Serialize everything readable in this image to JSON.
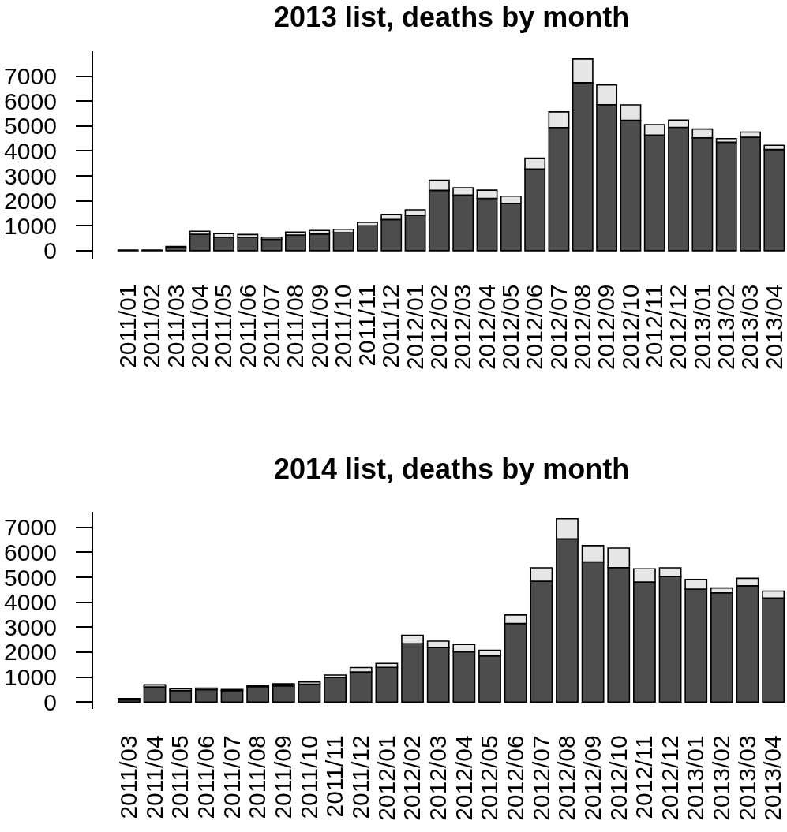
{
  "chart_data": [
    {
      "type": "bar",
      "title": "2013 list, deaths by month",
      "stacked": true,
      "categories": [
        "2011/01",
        "2011/02",
        "2011/03",
        "2011/04",
        "2011/05",
        "2011/06",
        "2011/07",
        "2011/08",
        "2011/09",
        "2011/10",
        "2011/11",
        "2011/12",
        "2012/01",
        "2012/02",
        "2012/03",
        "2012/04",
        "2012/05",
        "2012/06",
        "2012/07",
        "2012/08",
        "2012/09",
        "2012/10",
        "2012/11",
        "2012/12",
        "2013/01",
        "2013/02",
        "2013/03",
        "2013/04"
      ],
      "series": [
        {
          "color": "#4d4d4d",
          "values": [
            20,
            20,
            120,
            660,
            540,
            540,
            460,
            630,
            670,
            720,
            1000,
            1250,
            1420,
            2420,
            2230,
            2100,
            1900,
            3280,
            4940,
            6740,
            5860,
            5230,
            4640,
            4950,
            4530,
            4350,
            4550,
            4060
          ]
        },
        {
          "color": "#e6e6e6",
          "values": [
            0,
            0,
            50,
            120,
            150,
            110,
            80,
            120,
            140,
            140,
            140,
            210,
            220,
            410,
            300,
            330,
            290,
            430,
            630,
            950,
            790,
            620,
            420,
            290,
            350,
            150,
            210,
            170
          ]
        }
      ],
      "ylim": [
        -308,
        8000
      ],
      "yticks": [
        0,
        1000,
        2000,
        3000,
        4000,
        5000,
        6000,
        7000
      ]
    },
    {
      "type": "bar",
      "title": "2014 list, deaths by month",
      "stacked": true,
      "categories": [
        "2011/03",
        "2011/04",
        "2011/05",
        "2011/06",
        "2011/07",
        "2011/08",
        "2011/09",
        "2011/10",
        "2011/11",
        "2011/12",
        "2012/01",
        "2012/02",
        "2012/03",
        "2012/04",
        "2012/05",
        "2012/06",
        "2012/07",
        "2012/08",
        "2012/09",
        "2012/10",
        "2012/11",
        "2012/12",
        "2013/01",
        "2013/02",
        "2013/03",
        "2013/04"
      ],
      "series": [
        {
          "color": "#4d4d4d",
          "values": [
            90,
            610,
            460,
            500,
            460,
            620,
            650,
            720,
            980,
            1210,
            1390,
            2340,
            2180,
            2020,
            1850,
            3150,
            4840,
            6540,
            5620,
            5390,
            4810,
            5030,
            4530,
            4380,
            4660,
            4170
          ]
        },
        {
          "color": "#e6e6e6",
          "values": [
            50,
            80,
            80,
            60,
            40,
            50,
            80,
            90,
            100,
            170,
            160,
            340,
            260,
            290,
            230,
            340,
            540,
            810,
            650,
            780,
            530,
            350,
            380,
            190,
            300,
            280
          ]
        }
      ],
      "ylim": [
        -290,
        7640
      ],
      "yticks": [
        0,
        1000,
        2000,
        3000,
        4000,
        5000,
        6000,
        7000
      ]
    }
  ]
}
